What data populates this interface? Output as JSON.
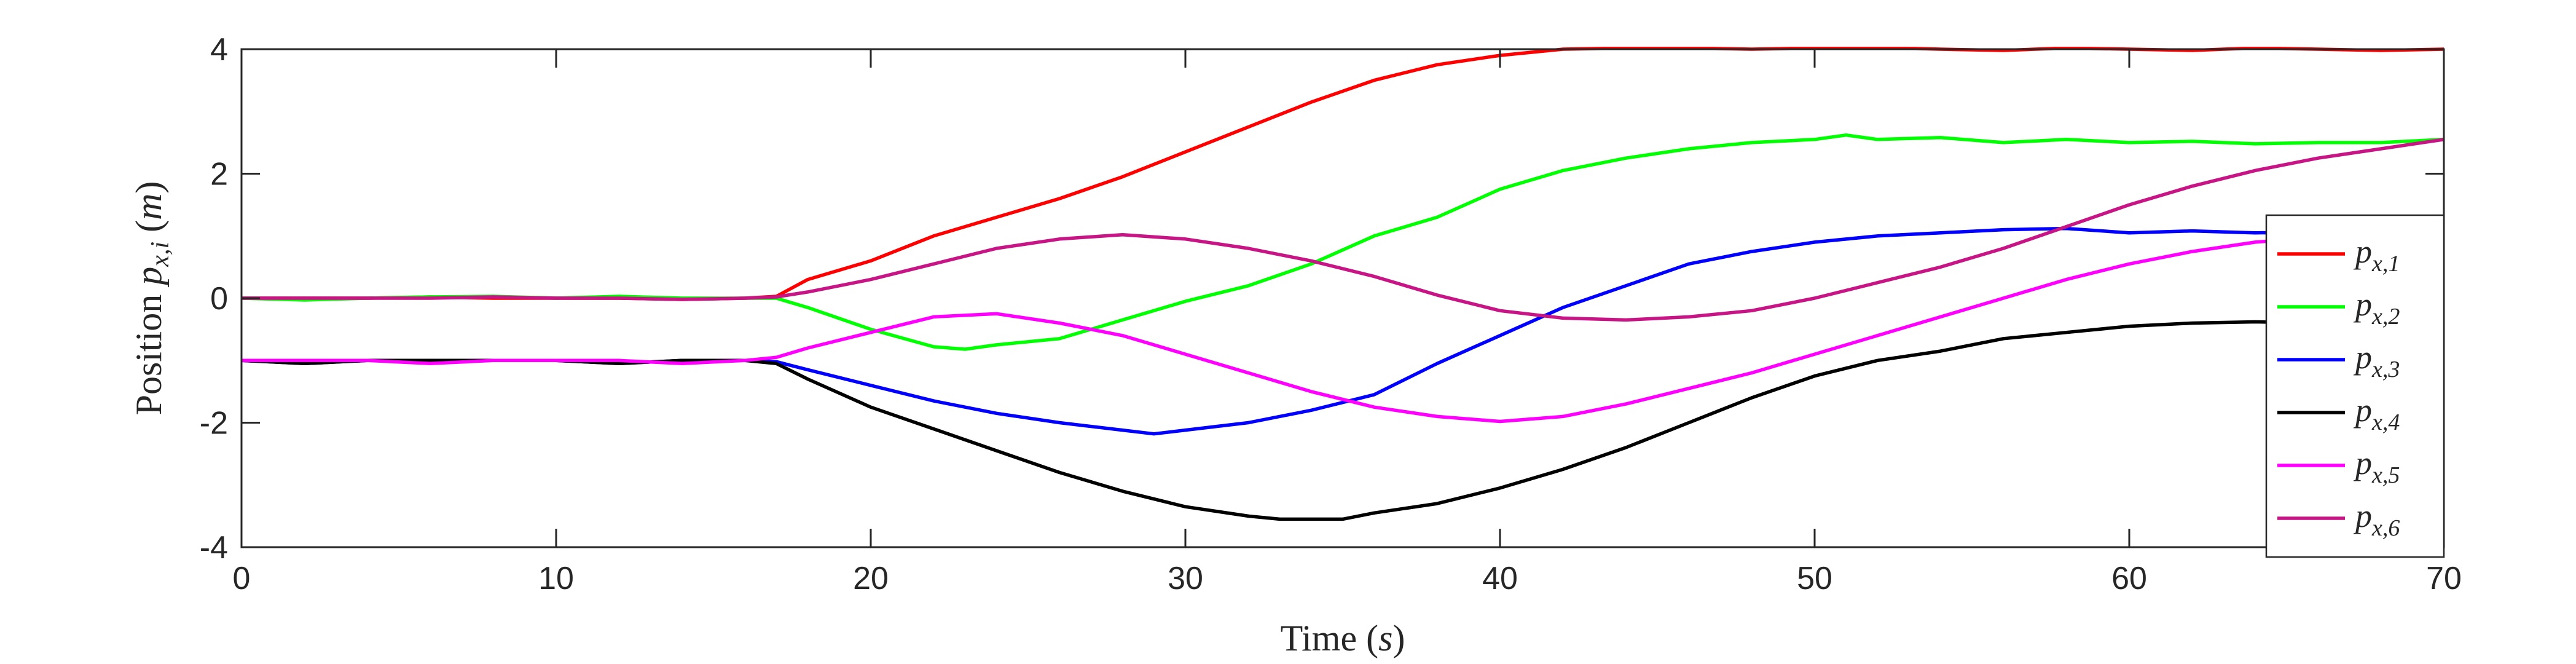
{
  "chart_data": {
    "type": "line",
    "xlabel": "Time (s)",
    "ylabel": "Position p_{x,i} (m)",
    "xlim": [
      0,
      70
    ],
    "ylim": [
      -4,
      4
    ],
    "xticks": [
      0,
      10,
      20,
      30,
      40,
      50,
      60,
      70
    ],
    "yticks": [
      -4,
      -2,
      0,
      2,
      4
    ],
    "xtick_labels": [
      "0",
      "10",
      "20",
      "30",
      "40",
      "50",
      "60",
      "70"
    ],
    "ytick_labels": [
      "-4",
      "-2",
      "0",
      "2",
      "4"
    ],
    "grid": false,
    "legend_position": "right",
    "series": [
      {
        "name": "p_{x,1}",
        "legend_main": "p",
        "legend_sub": "x,1",
        "color": "#ff0000",
        "x": [
          0,
          2,
          4,
          6,
          8,
          10,
          12,
          14,
          16,
          17,
          18,
          20,
          22,
          24,
          26,
          28,
          30,
          32,
          34,
          36,
          38,
          40,
          42,
          44,
          46,
          48,
          50,
          52,
          54,
          56,
          58,
          60,
          62,
          64,
          66,
          68,
          70
        ],
        "y": [
          0,
          0,
          0,
          0.02,
          0,
          0,
          0,
          -0.02,
          0,
          0.03,
          0.3,
          0.6,
          1.0,
          1.3,
          1.6,
          1.95,
          2.35,
          2.75,
          3.15,
          3.5,
          3.75,
          3.9,
          4.0,
          4.02,
          4.02,
          4.0,
          4.02,
          4.03,
          4.0,
          3.98,
          4.02,
          4.0,
          3.98,
          4.02,
          4.0,
          3.98,
          4.0
        ]
      },
      {
        "name": "p_{x,2}",
        "legend_main": "p",
        "legend_sub": "x,2",
        "color": "#00ff00",
        "x": [
          0,
          2,
          4,
          6,
          8,
          10,
          12,
          14,
          16,
          17,
          18,
          20,
          22,
          23,
          24,
          26,
          28,
          30,
          32,
          34,
          36,
          38,
          40,
          42,
          44,
          46,
          48,
          50,
          51,
          52,
          54,
          56,
          58,
          60,
          62,
          64,
          66,
          68,
          70
        ],
        "y": [
          0,
          -0.03,
          0,
          0.02,
          0.03,
          0,
          0.03,
          0,
          0,
          0,
          -0.15,
          -0.5,
          -0.78,
          -0.82,
          -0.75,
          -0.65,
          -0.35,
          -0.05,
          0.2,
          0.55,
          1.0,
          1.3,
          1.75,
          2.05,
          2.25,
          2.4,
          2.5,
          2.55,
          2.62,
          2.55,
          2.58,
          2.5,
          2.55,
          2.5,
          2.52,
          2.48,
          2.5,
          2.5,
          2.55
        ]
      },
      {
        "name": "p_{x,3}",
        "legend_main": "p",
        "legend_sub": "x,3",
        "color": "#0000ff",
        "x": [
          0,
          2,
          4,
          6,
          8,
          10,
          12,
          14,
          16,
          17,
          18,
          20,
          22,
          24,
          26,
          28,
          29,
          30,
          32,
          34,
          36,
          38,
          40,
          42,
          44,
          46,
          48,
          50,
          52,
          54,
          56,
          58,
          60,
          62,
          64,
          66,
          68,
          70
        ],
        "y": [
          -1.0,
          -1.05,
          -1.0,
          -1.0,
          -1.0,
          -1.0,
          -1.05,
          -1.0,
          -1.0,
          -1.02,
          -1.15,
          -1.4,
          -1.65,
          -1.85,
          -2.0,
          -2.12,
          -2.18,
          -2.12,
          -2.0,
          -1.8,
          -1.55,
          -1.05,
          -0.6,
          -0.15,
          0.2,
          0.55,
          0.75,
          0.9,
          1.0,
          1.05,
          1.1,
          1.12,
          1.05,
          1.08,
          1.05,
          1.06,
          1.0,
          1.02
        ]
      },
      {
        "name": "p_{x,4}",
        "legend_main": "p",
        "legend_sub": "x,4",
        "color": "#000000",
        "x": [
          0,
          2,
          4,
          6,
          8,
          10,
          12,
          14,
          16,
          17,
          18,
          20,
          22,
          24,
          26,
          28,
          30,
          32,
          33,
          34,
          35,
          36,
          38,
          40,
          42,
          44,
          46,
          48,
          50,
          52,
          54,
          56,
          58,
          60,
          62,
          64,
          66,
          68,
          70
        ],
        "y": [
          -1.0,
          -1.05,
          -1.0,
          -1.0,
          -1.0,
          -1.0,
          -1.05,
          -1.0,
          -1.0,
          -1.05,
          -1.3,
          -1.75,
          -2.1,
          -2.45,
          -2.8,
          -3.1,
          -3.35,
          -3.5,
          -3.55,
          -3.55,
          -3.55,
          -3.45,
          -3.3,
          -3.05,
          -2.75,
          -2.4,
          -2.0,
          -1.6,
          -1.25,
          -1.0,
          -0.85,
          -0.65,
          -0.55,
          -0.45,
          -0.4,
          -0.38,
          -0.4,
          -0.38,
          -0.42
        ]
      },
      {
        "name": "p_{x,5}",
        "legend_main": "p",
        "legend_sub": "x,5",
        "color": "#ff00ff",
        "x": [
          0,
          2,
          4,
          6,
          8,
          10,
          12,
          14,
          16,
          17,
          18,
          20,
          22,
          24,
          26,
          28,
          30,
          32,
          34,
          36,
          38,
          40,
          42,
          44,
          46,
          48,
          50,
          52,
          54,
          56,
          58,
          60,
          62,
          64,
          66,
          68,
          70
        ],
        "y": [
          -1.0,
          -1.0,
          -1.0,
          -1.05,
          -1.0,
          -1.0,
          -1.0,
          -1.05,
          -1.0,
          -0.95,
          -0.8,
          -0.55,
          -0.3,
          -0.25,
          -0.4,
          -0.6,
          -0.9,
          -1.2,
          -1.5,
          -1.75,
          -1.9,
          -1.98,
          -1.9,
          -1.7,
          -1.45,
          -1.2,
          -0.9,
          -0.6,
          -0.3,
          0.0,
          0.3,
          0.55,
          0.75,
          0.9,
          0.98,
          1.05,
          1.1
        ]
      },
      {
        "name": "p_{x,6}",
        "legend_main": "p",
        "legend_sub": "x,6",
        "color": "#c71585",
        "x": [
          0,
          2,
          4,
          6,
          8,
          10,
          12,
          14,
          16,
          17,
          18,
          20,
          22,
          24,
          26,
          28,
          30,
          32,
          34,
          36,
          38,
          40,
          42,
          44,
          46,
          48,
          50,
          52,
          54,
          56,
          58,
          60,
          62,
          64,
          66,
          68,
          70
        ],
        "y": [
          0,
          0,
          0,
          0,
          0.02,
          0,
          0,
          -0.02,
          0,
          0.02,
          0.1,
          0.3,
          0.55,
          0.8,
          0.95,
          1.02,
          0.95,
          0.8,
          0.6,
          0.35,
          0.05,
          -0.2,
          -0.32,
          -0.35,
          -0.3,
          -0.2,
          0.0,
          0.25,
          0.5,
          0.8,
          1.15,
          1.5,
          1.8,
          2.05,
          2.25,
          2.4,
          2.55
        ]
      }
    ]
  }
}
